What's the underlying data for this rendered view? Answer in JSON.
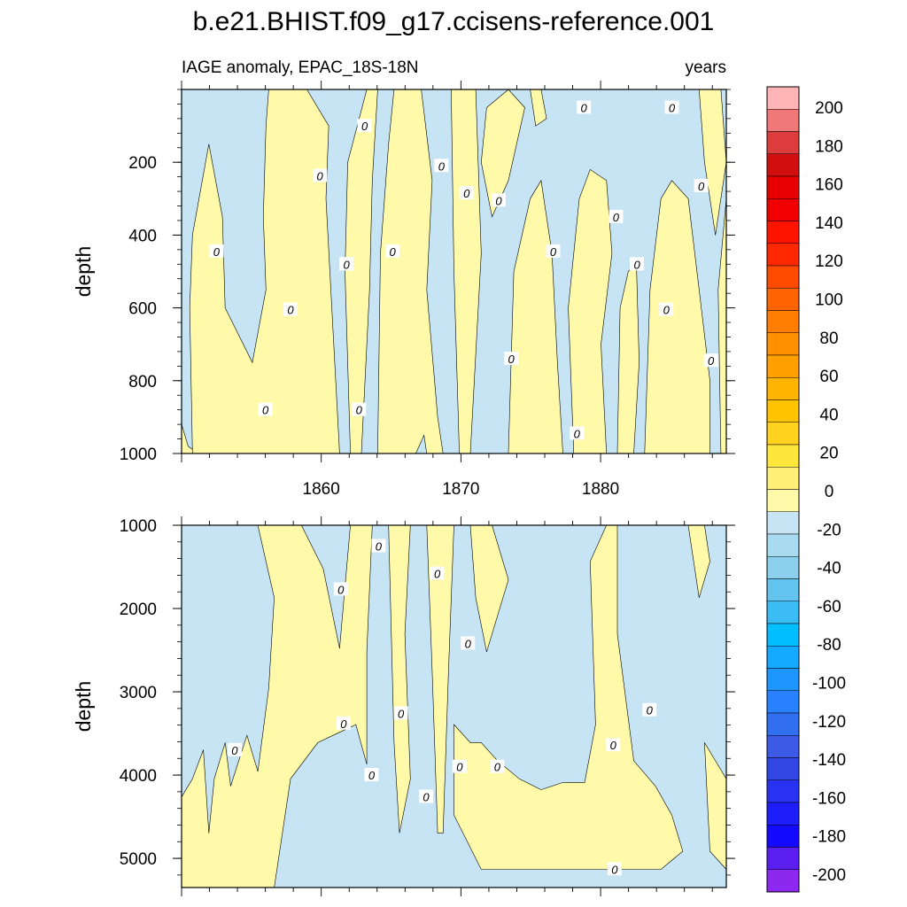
{
  "figure": {
    "title": "b.e21.BHIST.f09_g17.ccisens-reference.001",
    "left_subtitle": "IAGE anomaly, EPAC_18S-18N",
    "right_subtitle": "years"
  },
  "chart_data": [
    {
      "type": "contour",
      "panel": "upper",
      "xlabel": "",
      "ylabel": "depth",
      "xlim": [
        1850,
        1889
      ],
      "ylim": [
        1000,
        0
      ],
      "x_ticks": [
        1860,
        1870,
        1880
      ],
      "x_tick_labels": [
        "1860",
        "1870",
        "1880"
      ],
      "y_ticks": [
        200,
        400,
        600,
        800,
        1000
      ],
      "y_tick_labels": [
        "200",
        "400",
        "600",
        "800",
        "1000"
      ],
      "contour_interval": 10,
      "contour_line_labels": [
        {
          "text": "0",
          "x": 1852.5,
          "y": 445
        },
        {
          "text": "0",
          "x": 1856.0,
          "y": 880
        },
        {
          "text": "0",
          "x": 1857.8,
          "y": 605
        },
        {
          "text": "0",
          "x": 1859.9,
          "y": 237
        },
        {
          "text": "0",
          "x": 1861.8,
          "y": 480
        },
        {
          "text": "0",
          "x": 1862.7,
          "y": 880
        },
        {
          "text": "0",
          "x": 1863.1,
          "y": 100
        },
        {
          "text": "0",
          "x": 1865.1,
          "y": 445
        },
        {
          "text": "0",
          "x": 1868.6,
          "y": 210
        },
        {
          "text": "0",
          "x": 1870.4,
          "y": 285
        },
        {
          "text": "0",
          "x": 1872.7,
          "y": 305
        },
        {
          "text": "0",
          "x": 1873.6,
          "y": 740
        },
        {
          "text": "0",
          "x": 1876.6,
          "y": 445
        },
        {
          "text": "0",
          "x": 1878.3,
          "y": 945
        },
        {
          "text": "0",
          "x": 1878.8,
          "y": 50
        },
        {
          "text": "0",
          "x": 1881.1,
          "y": 350
        },
        {
          "text": "0",
          "x": 1882.6,
          "y": 480
        },
        {
          "text": "0",
          "x": 1884.7,
          "y": 605
        },
        {
          "text": "0",
          "x": 1885.1,
          "y": 50
        },
        {
          "text": "0",
          "x": 1887.2,
          "y": 265
        },
        {
          "text": "0",
          "x": 1887.9,
          "y": 745
        }
      ]
    },
    {
      "type": "contour",
      "panel": "lower",
      "xlabel": "",
      "ylabel": "depth",
      "xlim": [
        1850,
        1889
      ],
      "ylim": [
        5350,
        1000
      ],
      "y_ticks": [
        1000,
        2000,
        3000,
        4000,
        5000
      ],
      "y_tick_labels": [
        "1000",
        "2000",
        "3000",
        "4000",
        "5000"
      ],
      "contour_interval": 10,
      "contour_line_labels": [
        {
          "text": "0",
          "x": 1853.8,
          "y": 3700
        },
        {
          "text": "0",
          "x": 1861.4,
          "y": 1770
        },
        {
          "text": "0",
          "x": 1861.6,
          "y": 3380
        },
        {
          "text": "0",
          "x": 1863.6,
          "y": 4000
        },
        {
          "text": "0",
          "x": 1864.1,
          "y": 1250
        },
        {
          "text": "0",
          "x": 1865.7,
          "y": 3260
        },
        {
          "text": "0",
          "x": 1867.5,
          "y": 4260
        },
        {
          "text": "0",
          "x": 1868.3,
          "y": 1580
        },
        {
          "text": "0",
          "x": 1869.9,
          "y": 3900
        },
        {
          "text": "0",
          "x": 1870.5,
          "y": 2420
        },
        {
          "text": "0",
          "x": 1872.6,
          "y": 3900
        },
        {
          "text": "0",
          "x": 1880.9,
          "y": 3640
        },
        {
          "text": "0",
          "x": 1881.0,
          "y": 5130
        },
        {
          "text": "0",
          "x": 1883.5,
          "y": 3220
        }
      ]
    }
  ],
  "colorbar": {
    "labels": [
      "200",
      "180",
      "160",
      "140",
      "120",
      "100",
      "80",
      "60",
      "40",
      "20",
      "0",
      "-20",
      "-40",
      "-60",
      "-80",
      "-100",
      "-120",
      "-140",
      "-160",
      "-180",
      "-200"
    ],
    "colors": [
      "#FFB5B5",
      "#F07878",
      "#DC3C3C",
      "#D20F0F",
      "#E60000",
      "#F00000",
      "#FF1400",
      "#FF2800",
      "#FF4B00",
      "#FF6400",
      "#FF7D00",
      "#FF9100",
      "#FFA000",
      "#FFB400",
      "#FFC300",
      "#FFD21E",
      "#FFE63C",
      "#FFF078",
      "#FFFAAA",
      "#C6E4F4",
      "#A8DAF0",
      "#8CD0EE",
      "#64C4F0",
      "#3CBCF4",
      "#00BEFF",
      "#14AAFF",
      "#1E96FF",
      "#2882FF",
      "#326EF0",
      "#3C5AE6",
      "#3246E6",
      "#2832F0",
      "#1E1EFA",
      "#140AFF",
      "#5A1EF0",
      "#8C28F0"
    ],
    "fill_positive": "#FFFAAA",
    "fill_negative": "#C6E4F4"
  }
}
